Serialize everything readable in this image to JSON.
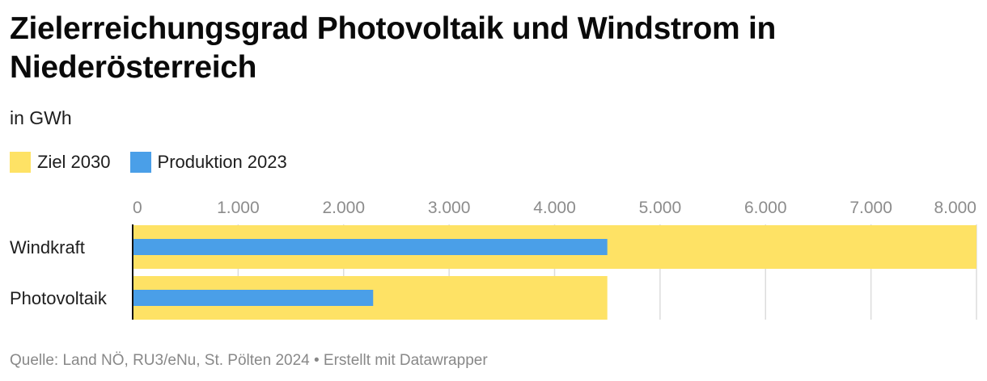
{
  "title": "Zielerreichungsgrad Photovoltaik und Windstrom in Niederösterreich",
  "subtitle": "in GWh",
  "legend": [
    {
      "label": "Ziel 2030",
      "color": "#fee265"
    },
    {
      "label": "Produktion 2023",
      "color": "#4a9fe8"
    }
  ],
  "footer": "Quelle: Land NÖ, RU3/eNu, St. Pölten 2024 • Erstellt mit Datawrapper",
  "chart_data": {
    "type": "bar",
    "orientation": "horizontal",
    "categories": [
      "Windkraft",
      "Photovoltaik"
    ],
    "series": [
      {
        "name": "Ziel 2030",
        "values": [
          8000,
          4500
        ],
        "color": "#fee265"
      },
      {
        "name": "Produktion 2023",
        "values": [
          4500,
          2280
        ],
        "color": "#4a9fe8"
      }
    ],
    "xlim": [
      0,
      8000
    ],
    "ticks": [
      0,
      1000,
      2000,
      3000,
      4000,
      5000,
      6000,
      7000,
      8000
    ],
    "tick_labels": [
      "0",
      "1.000",
      "2.000",
      "3.000",
      "4.000",
      "5.000",
      "6.000",
      "7.000",
      "8.000"
    ],
    "grid": true,
    "legend_position": "top-left"
  }
}
